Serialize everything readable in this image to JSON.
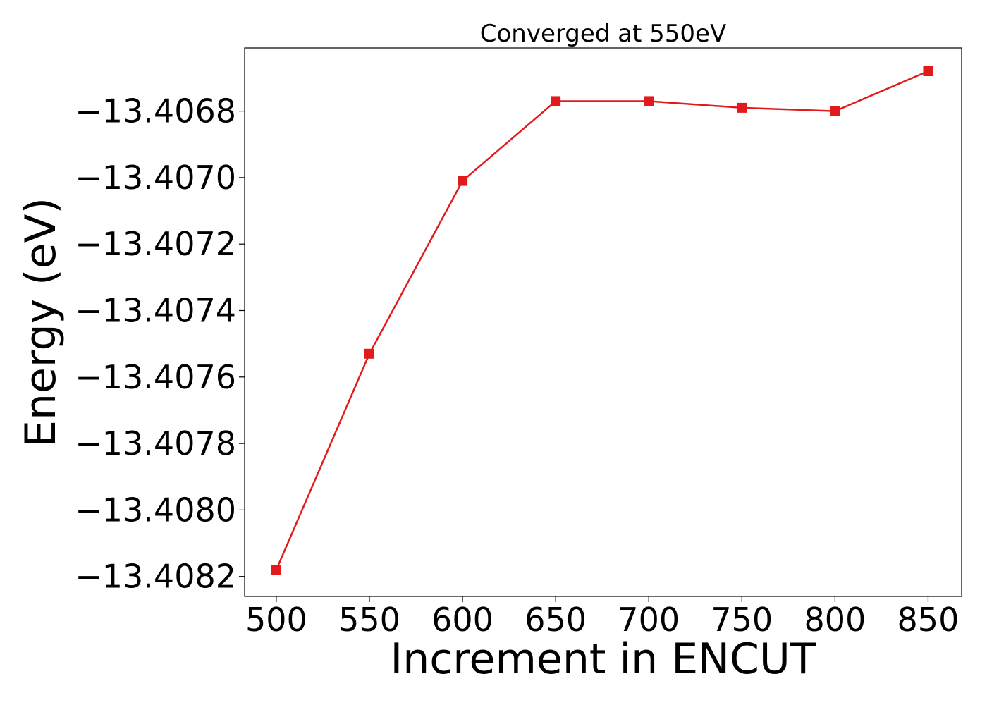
{
  "chart_data": {
    "type": "line",
    "title": "Converged at 550eV",
    "xlabel": "Increment in ENCUT",
    "ylabel": "Energy (eV)",
    "x": [
      500,
      550,
      600,
      650,
      700,
      750,
      800,
      850
    ],
    "series": [
      {
        "values": [
          -13.40818,
          -13.40753,
          -13.40701,
          -13.40677,
          -13.40677,
          -13.40679,
          -13.4068,
          -13.40668
        ],
        "color": "#e31a1c",
        "marker": "square"
      }
    ],
    "xlim": [
      483,
      868
    ],
    "ylim": [
      -13.40826,
      -13.40661
    ],
    "xticks": [
      500,
      550,
      600,
      650,
      700,
      750,
      800,
      850
    ],
    "xtick_labels": [
      "500",
      "550",
      "600",
      "650",
      "700",
      "750",
      "800",
      "850"
    ],
    "yticks": [
      -13.4068,
      -13.407,
      -13.4072,
      -13.4074,
      -13.4076,
      -13.4078,
      -13.408,
      -13.4082
    ],
    "ytick_labels": [
      "−13.4068",
      "−13.4070",
      "−13.4072",
      "−13.4074",
      "−13.4076",
      "−13.4078",
      "−13.4080",
      "−13.4082"
    ],
    "grid": false,
    "legend": "none"
  }
}
